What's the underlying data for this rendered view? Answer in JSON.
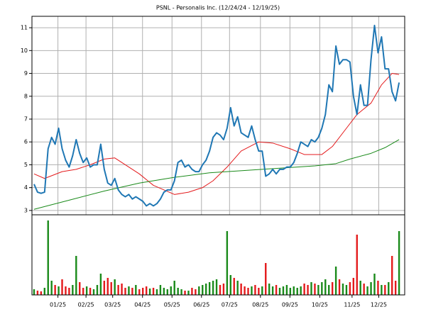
{
  "chart_data": {
    "type": "stock",
    "title": "PSNL - Personalis Inc. (12/24/24 - 12/19/25)",
    "xlim": [
      -0.6,
      105.6
    ],
    "xticks": [
      {
        "value": 6.8,
        "label": "01/25"
      },
      {
        "value": 14.8,
        "label": "02/25"
      },
      {
        "value": 22.4,
        "label": "03/25"
      },
      {
        "value": 30.9,
        "label": "04/25"
      },
      {
        "value": 39.3,
        "label": "05/25"
      },
      {
        "value": 47.7,
        "label": "06/25"
      },
      {
        "value": 55.7,
        "label": "07/25"
      },
      {
        "value": 64.5,
        "label": "08/25"
      },
      {
        "value": 72.9,
        "label": "09/25"
      },
      {
        "value": 81.4,
        "label": "10/25"
      },
      {
        "value": 90.6,
        "label": "11/25"
      },
      {
        "value": 98.2,
        "label": "12/25"
      }
    ],
    "ylim": [
      2.81,
      11.5
    ],
    "yticks": [
      3,
      4,
      5,
      6,
      7,
      8,
      9,
      10,
      11
    ],
    "grid": true,
    "price": {
      "color": "#1f77b4",
      "values": [
        4.15,
        3.8,
        3.75,
        3.8,
        5.7,
        6.2,
        5.9,
        6.6,
        5.7,
        5.2,
        4.9,
        5.4,
        6.1,
        5.5,
        5.1,
        5.3,
        4.9,
        5.0,
        5.0,
        5.9,
        4.8,
        4.2,
        4.1,
        4.4,
        3.9,
        3.7,
        3.6,
        3.7,
        3.5,
        3.6,
        3.5,
        3.4,
        3.2,
        3.3,
        3.2,
        3.3,
        3.5,
        3.8,
        3.9,
        3.9,
        4.3,
        5.1,
        5.2,
        4.9,
        5.0,
        4.8,
        4.7,
        4.7,
        5.0,
        5.2,
        5.6,
        6.2,
        6.4,
        6.3,
        6.1,
        6.6,
        7.5,
        6.7,
        7.1,
        6.4,
        6.3,
        6.2,
        6.7,
        6.1,
        5.6,
        5.6,
        4.5,
        4.6,
        4.8,
        4.6,
        4.8,
        4.8,
        4.9,
        4.9,
        5.1,
        5.5,
        6.0,
        5.9,
        5.8,
        6.1,
        6.0,
        6.2,
        6.6,
        7.2,
        8.5,
        8.2,
        10.2,
        9.4,
        9.6,
        9.6,
        9.5,
        8.0,
        7.2,
        8.5,
        7.6,
        7.6,
        9.6,
        11.1,
        9.9,
        10.6,
        9.2,
        9.2,
        8.2,
        7.8,
        8.6
      ]
    },
    "series": [
      {
        "color": "#e41a1c",
        "x": [
          0,
          3,
          8,
          12,
          16,
          20,
          23,
          26,
          30,
          34,
          40,
          44,
          48,
          51,
          55,
          59,
          64,
          68,
          73,
          77,
          82,
          85,
          89,
          92,
          96,
          99,
          102,
          104
        ],
        "values": [
          4.6,
          4.4,
          4.7,
          4.8,
          5.0,
          5.25,
          5.3,
          5.0,
          4.6,
          4.1,
          3.7,
          3.8,
          4.0,
          4.3,
          4.9,
          5.6,
          6.0,
          5.95,
          5.7,
          5.45,
          5.45,
          5.8,
          6.6,
          7.2,
          7.7,
          8.5,
          9.0,
          8.95
        ]
      },
      {
        "color": "#1a8a1a",
        "x": [
          0,
          10,
          20,
          30,
          40,
          50,
          60,
          70,
          80,
          86,
          90,
          96,
          100,
          104
        ],
        "values": [
          3.05,
          3.45,
          3.85,
          4.2,
          4.45,
          4.65,
          4.75,
          4.85,
          4.95,
          5.05,
          5.25,
          5.5,
          5.75,
          6.1
        ]
      }
    ],
    "volume": {
      "up_color": "#1a8a1a",
      "down_color": "#e41a1c",
      "vlim": [
        0,
        113
      ],
      "values": [
        8,
        6,
        5,
        10,
        105,
        20,
        14,
        12,
        22,
        12,
        10,
        14,
        55,
        18,
        10,
        12,
        10,
        8,
        14,
        30,
        20,
        24,
        18,
        22,
        14,
        16,
        10,
        12,
        10,
        14,
        8,
        10,
        12,
        9,
        10,
        8,
        14,
        10,
        8,
        12,
        20,
        10,
        8,
        6,
        6,
        10,
        8,
        12,
        14,
        16,
        18,
        20,
        22,
        14,
        16,
        90,
        28,
        24,
        20,
        16,
        12,
        10,
        12,
        14,
        10,
        12,
        45,
        16,
        12,
        14,
        10,
        12,
        14,
        10,
        12,
        10,
        12,
        16,
        14,
        18,
        16,
        14,
        18,
        22,
        14,
        18,
        40,
        22,
        16,
        14,
        18,
        24,
        85,
        20,
        16,
        12,
        18,
        30,
        20,
        14,
        14,
        18,
        55,
        20,
        90
      ]
    }
  }
}
